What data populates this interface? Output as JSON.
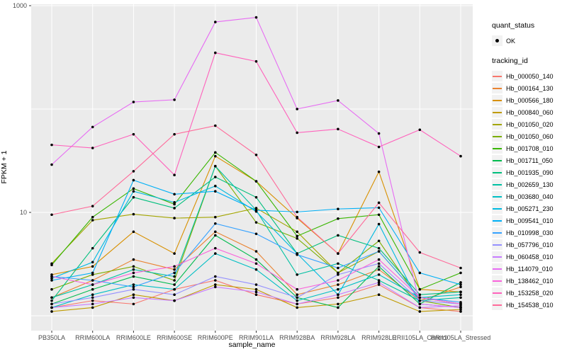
{
  "legend": {
    "quant_status_title": "quant_status",
    "quant_status_value": "OK",
    "tracking_id_title": "tracking_id"
  },
  "axes": {
    "y_title": "FPKM + 1",
    "x_title": "sample_name",
    "y_tick_labels": [
      "1000",
      "10"
    ]
  },
  "chart_data": {
    "type": "line",
    "title": "",
    "xlabel": "sample_name",
    "ylabel": "FPKM + 1",
    "y_scale": "log10",
    "ylim": [
      0.95,
      1100
    ],
    "y_ticks_labeled": [
      1000,
      10
    ],
    "y_gridlines": [
      1,
      10,
      100,
      1000
    ],
    "grid": "on",
    "legend_position": "right",
    "panel_bg": "#EBEBEB",
    "gridline_color": "#FFFFFF",
    "point_color": "#000000",
    "tick_label_color": "#4D4D4D",
    "quant_status": "OK",
    "categories": [
      "PB350LA",
      "RRIM600LA",
      "RRIM600LE",
      "RRIM600SE",
      "RRIM600PE",
      "RRIM901LA",
      "RRIM928BA",
      "RRIM928LA",
      "RRIM928LE",
      "RRII105LA_Control",
      "RRII105LA_Stressed"
    ],
    "series": [
      {
        "name": "Hb_000050_140",
        "color": "#F8766D",
        "values": [
          1.2,
          1.4,
          1.3,
          1.8,
          2.2,
          1.6,
          1.3,
          1.5,
          2.0,
          1.2,
          1.1
        ]
      },
      {
        "name": "Hb_000164_130",
        "color": "#EA8331",
        "values": [
          1.5,
          2.2,
          3.5,
          2.8,
          6.5,
          4.2,
          1.6,
          2.0,
          2.8,
          1.4,
          1.9
        ]
      },
      {
        "name": "Hb_000566_180",
        "color": "#D89000",
        "values": [
          2.5,
          3.0,
          6.5,
          4.0,
          35,
          20,
          8.8,
          4.0,
          24.7,
          1.8,
          1.7
        ]
      },
      {
        "name": "Hb_000840_060",
        "color": "#C09B00",
        "values": [
          1.1,
          1.2,
          1.6,
          1.4,
          2.0,
          1.8,
          1.2,
          1.3,
          1.6,
          1.1,
          1.15
        ]
      },
      {
        "name": "Hb_001050_020",
        "color": "#A3A500",
        "values": [
          3.2,
          8.4,
          9.6,
          8.8,
          9.0,
          11,
          6.5,
          2.6,
          4.2,
          1.5,
          1.3
        ]
      },
      {
        "name": "Hb_001050_060",
        "color": "#7CAE00",
        "values": [
          1.8,
          2.5,
          3.0,
          2.2,
          28,
          8.0,
          5.6,
          2.6,
          5.3,
          1.4,
          1.2
        ]
      },
      {
        "name": "Hb_001708_010",
        "color": "#39B600",
        "values": [
          3.1,
          9.0,
          17,
          12,
          38,
          20,
          5.9,
          8.7,
          9.5,
          1.8,
          2.6
        ]
      },
      {
        "name": "Hb_001711_050",
        "color": "#00BB4E",
        "values": [
          1.3,
          1.8,
          2.4,
          2.0,
          6.0,
          3.5,
          1.5,
          1.2,
          3.0,
          1.3,
          2.1
        ]
      },
      {
        "name": "Hb_001935_090",
        "color": "#00BF7D",
        "values": [
          1.4,
          4.5,
          14,
          11,
          22,
          14,
          4.0,
          6.0,
          4.5,
          1.6,
          1.7
        ]
      },
      {
        "name": "Hb_002659_130",
        "color": "#00C1A3",
        "values": [
          1.5,
          2.0,
          2.8,
          2.4,
          28,
          10.5,
          2.5,
          3.2,
          2.2,
          1.4,
          1.5
        ]
      },
      {
        "name": "Hb_003680_040",
        "color": "#00BFC4",
        "values": [
          1.2,
          1.6,
          2.0,
          1.8,
          4.0,
          2.8,
          1.4,
          1.8,
          2.5,
          1.5,
          1.6
        ]
      },
      {
        "name": "Hb_005271_230",
        "color": "#00BAE0",
        "values": [
          2.3,
          3.3,
          16,
          12.5,
          18,
          10.2,
          4.0,
          1.6,
          7.7,
          1.3,
          1.2
        ]
      },
      {
        "name": "Hb_009541_010",
        "color": "#00B0F6",
        "values": [
          2.2,
          2.6,
          20.5,
          15,
          16,
          10.5,
          10.1,
          10.8,
          11.1,
          2.6,
          2.0
        ]
      },
      {
        "name": "Hb_010998_030",
        "color": "#35A2FF",
        "values": [
          2.4,
          2.2,
          1.9,
          2.6,
          7.8,
          6.2,
          3.9,
          2.9,
          4.2,
          1.5,
          1.35
        ]
      },
      {
        "name": "Hb_057796_010",
        "color": "#9590FF",
        "values": [
          1.3,
          1.5,
          1.8,
          1.6,
          2.4,
          2.0,
          1.5,
          2.5,
          3.2,
          1.4,
          1.3
        ]
      },
      {
        "name": "Hb_060458_010",
        "color": "#C77CFF",
        "values": [
          1.2,
          1.3,
          1.5,
          1.4,
          1.9,
          1.7,
          1.3,
          1.6,
          2.1,
          1.2,
          1.25
        ]
      },
      {
        "name": "Hb_114079_010",
        "color": "#E76BF3",
        "values": [
          29,
          67,
          117,
          123,
          695,
          770,
          100,
          121,
          58,
          1.3,
          1.2
        ]
      },
      {
        "name": "Hb_138462_010",
        "color": "#FA62DB",
        "values": [
          2.4,
          2.0,
          2.6,
          3.0,
          4.5,
          3.2,
          1.8,
          2.2,
          3.5,
          1.5,
          1.3
        ]
      },
      {
        "name": "Hb_153258_020",
        "color": "#FF62BC",
        "values": [
          45,
          42,
          57,
          23,
          350,
          289,
          59,
          64,
          43,
          63,
          35
        ]
      },
      {
        "name": "Hb_154538_010",
        "color": "#FF6A9A",
        "values": [
          9.5,
          11.5,
          25,
          57,
          69,
          36,
          9.0,
          4.0,
          12.4,
          4.1,
          2.9
        ]
      }
    ]
  }
}
